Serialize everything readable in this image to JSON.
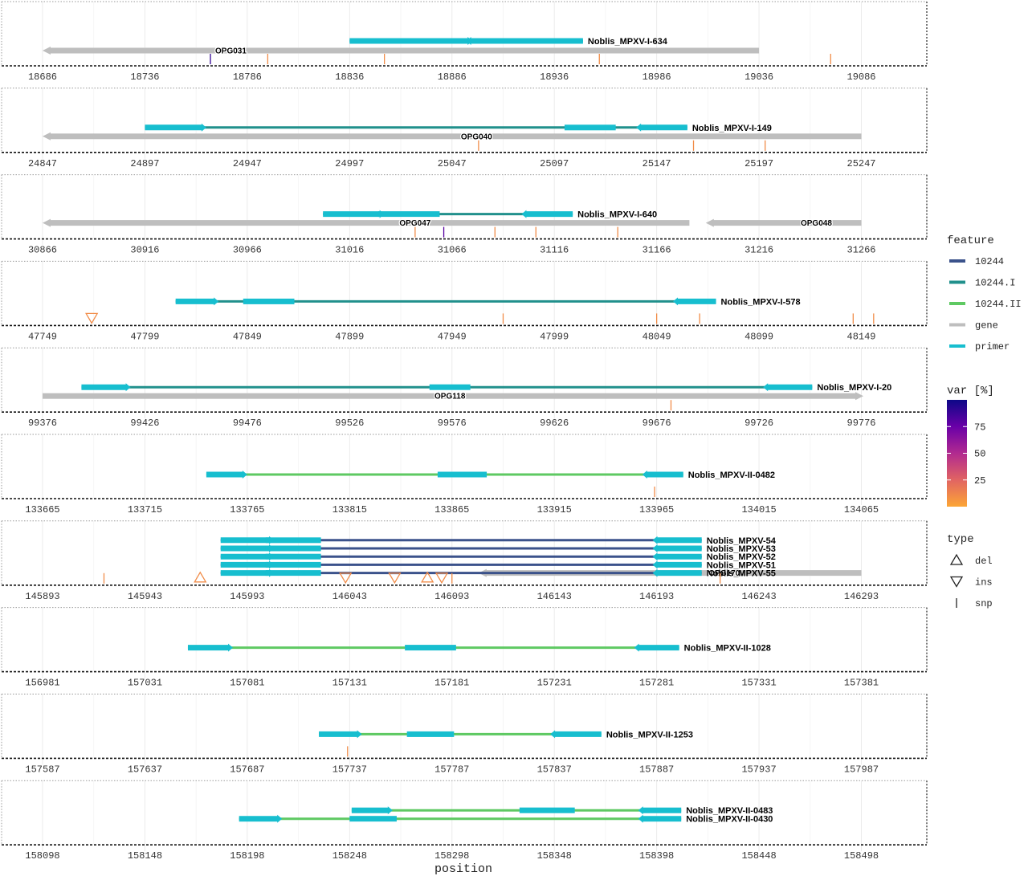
{
  "chart_data": {
    "type": "genome-track",
    "xlabel": "position",
    "panels": [
      {
        "range": [
          18686,
          19096
        ],
        "ticks": [
          18686,
          18736,
          18786,
          18836,
          18886,
          18936,
          18986,
          19036,
          19086
        ],
        "genes": [
          {
            "name": "OPG031",
            "start": 18686,
            "end": 19036,
            "strand": -1,
            "label_pos": 18778,
            "row": 0
          }
        ],
        "amplicons": [
          {
            "name": "Noblis_MPXV-I-634",
            "feature": "10244.I",
            "start": 18836,
            "end": 18950,
            "row": 0,
            "primers": [
              {
                "start": 18836,
                "end": 18896,
                "dir": 1
              },
              {
                "start": 18886,
                "end": 18946,
                "dir": 0
              },
              {
                "start": 18893,
                "end": 18950,
                "dir": -1
              }
            ]
          }
        ],
        "variants": [
          {
            "pos": 18768,
            "type": "snp",
            "var": 90
          },
          {
            "pos": 18796,
            "type": "snp",
            "var": 10
          },
          {
            "pos": 18853,
            "type": "snp",
            "var": 10
          },
          {
            "pos": 18958,
            "type": "snp",
            "var": 10
          },
          {
            "pos": 19071,
            "type": "snp",
            "var": 10
          }
        ]
      },
      {
        "range": [
          24847,
          25257
        ],
        "ticks": [
          24847,
          24897,
          24947,
          24997,
          25047,
          25097,
          25147,
          25197,
          25247
        ],
        "genes": [
          {
            "name": "OPG040",
            "start": 24847,
            "end": 25247,
            "strand": -1,
            "label_pos": 25059,
            "row": 0
          }
        ],
        "amplicons": [
          {
            "name": "Noblis_MPXV-I-149",
            "feature": "10244.I",
            "start": 24897,
            "end": 25162,
            "row": 0,
            "primers": [
              {
                "start": 24897,
                "end": 24927,
                "dir": 1
              },
              {
                "start": 25102,
                "end": 25127,
                "dir": 0
              },
              {
                "start": 25137,
                "end": 25162,
                "dir": -1
              }
            ]
          }
        ],
        "variants": [
          {
            "pos": 25060,
            "type": "snp",
            "var": 10
          },
          {
            "pos": 25165,
            "type": "snp",
            "var": 10
          },
          {
            "pos": 25200,
            "type": "snp",
            "var": 10
          }
        ]
      },
      {
        "range": [
          30866,
          31276
        ],
        "ticks": [
          30866,
          30916,
          30966,
          31016,
          31066,
          31116,
          31166,
          31216,
          31266
        ],
        "genes": [
          {
            "name": "OPG047",
            "start": 30866,
            "end": 31182,
            "strand": -1,
            "label_pos": 31048,
            "row": 0
          },
          {
            "name": "OPG048",
            "start": 31190,
            "end": 31266,
            "strand": -1,
            "label_pos": 31244,
            "row": 0
          }
        ],
        "amplicons": [
          {
            "name": "Noblis_MPXV-I-640",
            "feature": "10244.I",
            "start": 31003,
            "end": 31125,
            "row": 0,
            "primers": [
              {
                "start": 31003,
                "end": 31033,
                "dir": 1
              },
              {
                "start": 31030,
                "end": 31060,
                "dir": 0
              },
              {
                "start": 31100,
                "end": 31125,
                "dir": -1
              }
            ]
          }
        ],
        "variants": [
          {
            "pos": 31048,
            "type": "snp",
            "var": 10
          },
          {
            "pos": 31062,
            "type": "snp",
            "var": 80
          },
          {
            "pos": 31087,
            "type": "snp",
            "var": 10
          },
          {
            "pos": 31107,
            "type": "snp",
            "var": 10
          },
          {
            "pos": 31147,
            "type": "snp",
            "var": 10
          }
        ]
      },
      {
        "range": [
          47749,
          48159
        ],
        "ticks": [
          47749,
          47799,
          47849,
          47899,
          47949,
          47999,
          48049,
          48099,
          48149
        ],
        "genes": [],
        "amplicons": [
          {
            "name": "Noblis_MPXV-I-578",
            "feature": "10244.I",
            "start": 47814,
            "end": 48078,
            "row": 0,
            "primers": [
              {
                "start": 47814,
                "end": 47835,
                "dir": 1
              },
              {
                "start": 47847,
                "end": 47872,
                "dir": 0
              },
              {
                "start": 48057,
                "end": 48078,
                "dir": -1
              }
            ]
          }
        ],
        "variants": [
          {
            "pos": 47773,
            "type": "ins",
            "var": 10
          },
          {
            "pos": 47974,
            "type": "snp",
            "var": 10
          },
          {
            "pos": 48049,
            "type": "snp",
            "var": 10
          },
          {
            "pos": 48070,
            "type": "snp",
            "var": 10
          },
          {
            "pos": 48145,
            "type": "snp",
            "var": 10
          },
          {
            "pos": 48155,
            "type": "snp",
            "var": 10
          }
        ]
      },
      {
        "range": [
          99376,
          99786
        ],
        "ticks": [
          99376,
          99426,
          99476,
          99526,
          99576,
          99626,
          99676,
          99726,
          99776
        ],
        "genes": [
          {
            "name": "OPG118",
            "start": 99376,
            "end": 99777,
            "strand": 1,
            "label_pos": 99575,
            "row": 0
          }
        ],
        "amplicons": [
          {
            "name": "Noblis_MPXV-I-20",
            "feature": "10244.I",
            "start": 99395,
            "end": 99752,
            "row": 0,
            "primers": [
              {
                "start": 99395,
                "end": 99419,
                "dir": 1
              },
              {
                "start": 99565,
                "end": 99585,
                "dir": 0
              },
              {
                "start": 99728,
                "end": 99752,
                "dir": -1
              }
            ]
          }
        ],
        "variants": [
          {
            "pos": 99683,
            "type": "snp",
            "var": 10
          }
        ]
      },
      {
        "range": [
          133665,
          134075
        ],
        "ticks": [
          133665,
          133715,
          133765,
          133815,
          133865,
          133915,
          133965,
          134015,
          134065
        ],
        "genes": [],
        "amplicons": [
          {
            "name": "Noblis_MPXV-II-0482",
            "feature": "10244.II",
            "start": 133745,
            "end": 133978,
            "row": 0,
            "primers": [
              {
                "start": 133745,
                "end": 133765,
                "dir": 1
              },
              {
                "start": 133858,
                "end": 133882,
                "dir": 0
              },
              {
                "start": 133958,
                "end": 133978,
                "dir": -1
              }
            ]
          }
        ],
        "variants": [
          {
            "pos": 133964,
            "type": "snp",
            "var": 10
          }
        ]
      },
      {
        "range": [
          145893,
          146303
        ],
        "ticks": [
          145893,
          145943,
          145993,
          146043,
          146093,
          146143,
          146193,
          146243,
          146293
        ],
        "genes": [
          {
            "name": "OPG170",
            "start": 146106,
            "end": 146293,
            "strand": -1,
            "label_pos": 146226,
            "row": 4
          }
        ],
        "amplicons": [
          {
            "name": "Noblis_MPXV-54",
            "feature": "10244",
            "start": 145980,
            "end": 146215,
            "row": 0,
            "primers": [
              {
                "start": 145980,
                "end": 146006,
                "dir": 1
              },
              {
                "start": 146002,
                "end": 146029,
                "dir": 0
              },
              {
                "start": 146191,
                "end": 146215,
                "dir": -1
              }
            ]
          },
          {
            "name": "Noblis_MPXV-53",
            "feature": "10244",
            "start": 145980,
            "end": 146215,
            "row": 1,
            "primers": [
              {
                "start": 145980,
                "end": 146006,
                "dir": 1
              },
              {
                "start": 146002,
                "end": 146029,
                "dir": 0
              },
              {
                "start": 146191,
                "end": 146215,
                "dir": -1
              }
            ]
          },
          {
            "name": "Noblis_MPXV-52",
            "feature": "10244",
            "start": 145980,
            "end": 146215,
            "row": 2,
            "primers": [
              {
                "start": 145980,
                "end": 146006,
                "dir": 1
              },
              {
                "start": 146002,
                "end": 146029,
                "dir": 0
              },
              {
                "start": 146191,
                "end": 146215,
                "dir": -1
              }
            ]
          },
          {
            "name": "Noblis_MPXV-51",
            "feature": "10244",
            "start": 145980,
            "end": 146215,
            "row": 3,
            "primers": [
              {
                "start": 145980,
                "end": 146006,
                "dir": 1
              },
              {
                "start": 146002,
                "end": 146029,
                "dir": 0
              },
              {
                "start": 146191,
                "end": 146215,
                "dir": -1
              }
            ]
          },
          {
            "name": "Noblis_MPXV-55",
            "feature": "10244",
            "start": 145980,
            "end": 146215,
            "row": 4,
            "primers": [
              {
                "start": 145980,
                "end": 146006,
                "dir": 1
              },
              {
                "start": 146002,
                "end": 146029,
                "dir": 0
              },
              {
                "start": 146191,
                "end": 146215,
                "dir": -1
              }
            ]
          }
        ],
        "variants": [
          {
            "pos": 145923,
            "type": "snp",
            "var": 10
          },
          {
            "pos": 145970,
            "type": "del",
            "var": 10
          },
          {
            "pos": 146041,
            "type": "ins",
            "var": 10
          },
          {
            "pos": 146065,
            "type": "ins",
            "var": 10
          },
          {
            "pos": 146081,
            "type": "del",
            "var": 10
          },
          {
            "pos": 146088,
            "type": "ins",
            "var": 10
          },
          {
            "pos": 146093,
            "type": "snp",
            "var": 10
          },
          {
            "pos": 146224,
            "type": "snp",
            "var": 10
          }
        ]
      },
      {
        "range": [
          156981,
          157391
        ],
        "ticks": [
          156981,
          157031,
          157081,
          157131,
          157181,
          157231,
          157281,
          157331,
          157381
        ],
        "genes": [],
        "amplicons": [
          {
            "name": "Noblis_MPXV-II-1028",
            "feature": "10244.II",
            "start": 157052,
            "end": 157292,
            "row": 0,
            "primers": [
              {
                "start": 157052,
                "end": 157074,
                "dir": 1
              },
              {
                "start": 157158,
                "end": 157183,
                "dir": 0
              },
              {
                "start": 157270,
                "end": 157292,
                "dir": -1
              }
            ]
          }
        ],
        "variants": []
      },
      {
        "range": [
          157587,
          157997
        ],
        "ticks": [
          157587,
          157637,
          157687,
          157737,
          157787,
          157837,
          157887,
          157937,
          157987
        ],
        "genes": [],
        "amplicons": [
          {
            "name": "Noblis_MPXV-II-1253",
            "feature": "10244.II",
            "start": 157722,
            "end": 157860,
            "row": 0,
            "primers": [
              {
                "start": 157722,
                "end": 157743,
                "dir": 1
              },
              {
                "start": 157765,
                "end": 157788,
                "dir": 0
              },
              {
                "start": 157835,
                "end": 157860,
                "dir": -1
              }
            ]
          }
        ],
        "variants": [
          {
            "pos": 157736,
            "type": "snp",
            "var": 10
          }
        ]
      },
      {
        "range": [
          158098,
          158508
        ],
        "ticks": [
          158098,
          158148,
          158198,
          158248,
          158298,
          158348,
          158398,
          158448,
          158498
        ],
        "genes": [],
        "amplicons": [
          {
            "name": "Noblis_MPXV-II-0483",
            "feature": "10244.II",
            "start": 158249,
            "end": 158410,
            "row": 0,
            "primers": [
              {
                "start": 158249,
                "end": 158269,
                "dir": 1
              },
              {
                "start": 158331,
                "end": 158358,
                "dir": 0
              },
              {
                "start": 158389,
                "end": 158410,
                "dir": -1
              }
            ]
          },
          {
            "name": "Noblis_MPXV-II-0430",
            "feature": "10244.II",
            "start": 158194,
            "end": 158410,
            "row": 1,
            "primers": [
              {
                "start": 158194,
                "end": 158215,
                "dir": 1
              },
              {
                "start": 158248,
                "end": 158271,
                "dir": 0
              },
              {
                "start": 158389,
                "end": 158410,
                "dir": -1
              }
            ]
          }
        ],
        "variants": []
      }
    ],
    "legend_feature": {
      "title": "feature",
      "items": [
        {
          "label": "10244",
          "color": "#3b528b"
        },
        {
          "label": "10244.I",
          "color": "#21908c"
        },
        {
          "label": "10244.II",
          "color": "#5ec962"
        },
        {
          "label": "gene",
          "color": "#bebebe"
        },
        {
          "label": "primer",
          "color": "#17becf"
        }
      ]
    },
    "legend_var": {
      "title": "var [%]",
      "ticks": [
        25,
        50,
        75
      ],
      "range": [
        0,
        100
      ],
      "colors": [
        "#fca636",
        "#e16462",
        "#b12a90",
        "#6a00a8",
        "#0d0887"
      ]
    },
    "legend_type": {
      "title": "type",
      "items": [
        {
          "label": "del",
          "symbol": "triangle-up"
        },
        {
          "label": "ins",
          "symbol": "triangle-down"
        },
        {
          "label": "snp",
          "symbol": "bar"
        }
      ]
    }
  }
}
